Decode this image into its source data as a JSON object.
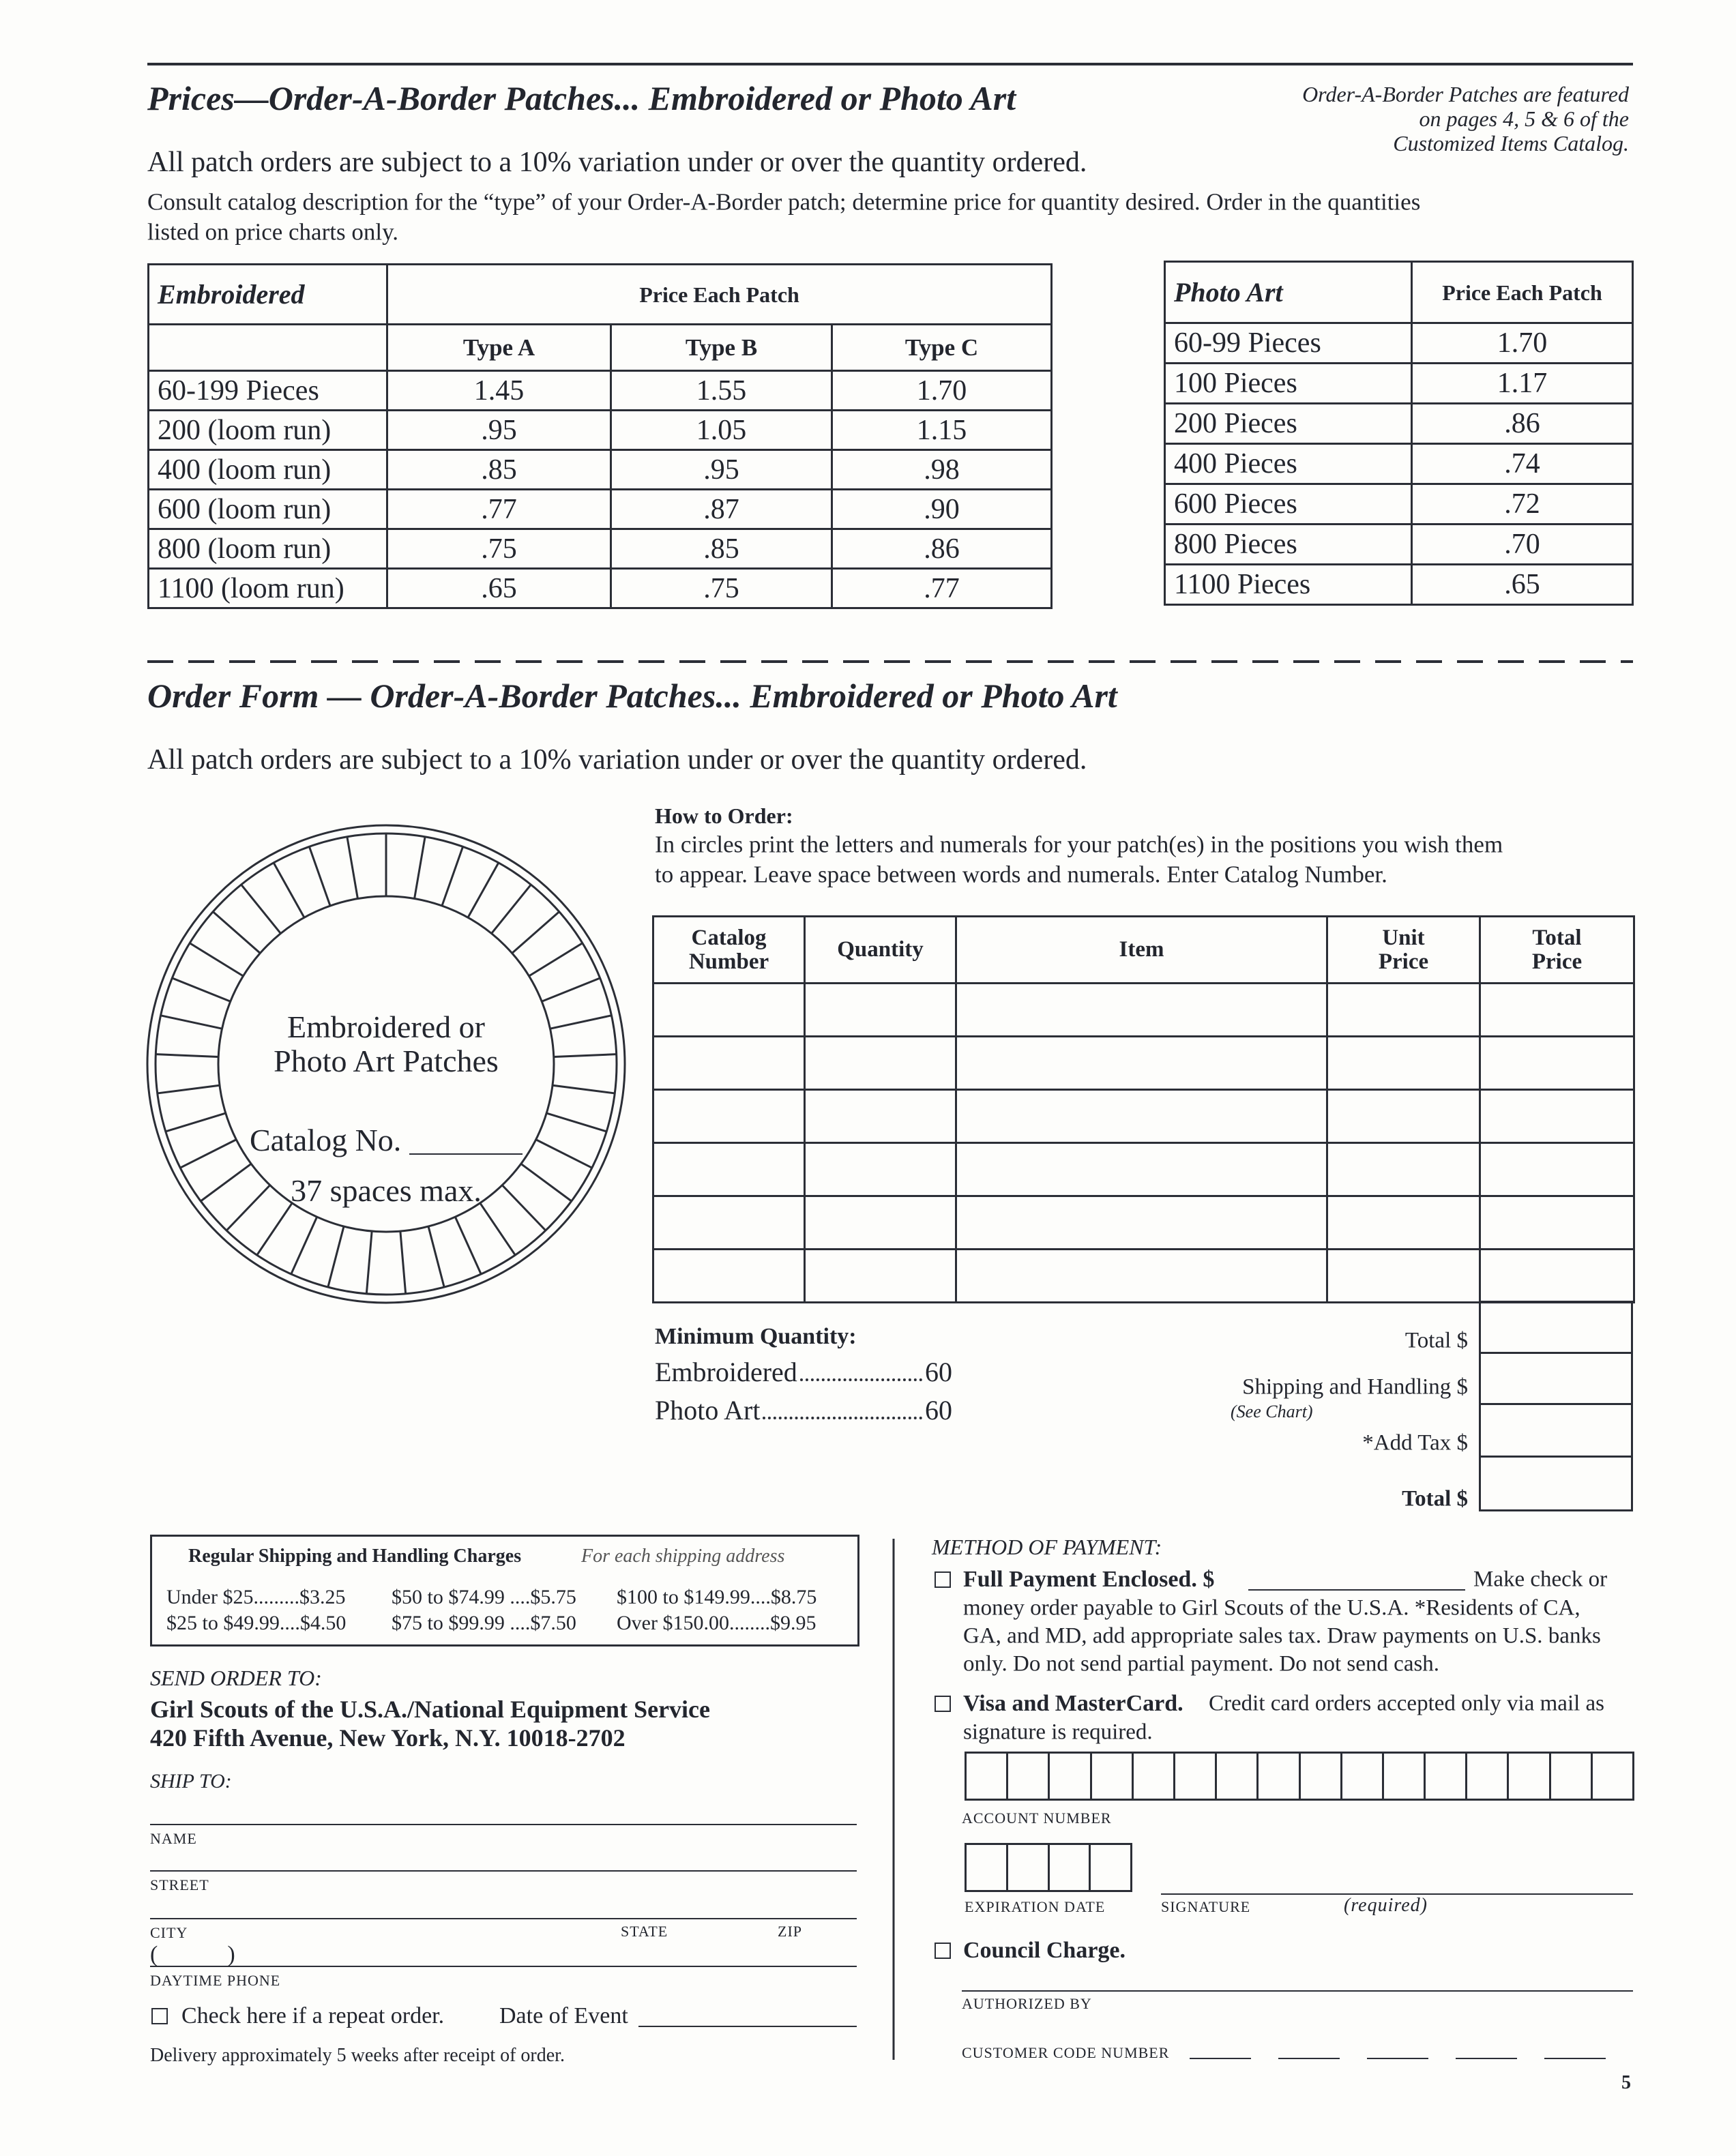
{
  "header": {
    "title": "Prices—Order-A-Border Patches... Embroidered or Photo Art",
    "note": [
      "Order-A-Border Patches are featured",
      "on pages 4, 5 & 6 of the",
      "Customized Items Catalog."
    ],
    "variation": "All patch orders are subject to a 10% variation under or over the quantity ordered.",
    "consult": [
      "Consult catalog description for the “type” of your Order-A-Border patch; determine price for quantity desired. Order in the quantities",
      "listed on price charts only."
    ]
  },
  "embroidered_table": {
    "header": [
      "Embroidered",
      "Price Each Patch"
    ],
    "columns": [
      "Type A",
      "Type B",
      "Type C"
    ],
    "rows": [
      [
        "60-199 Pieces",
        "1.45",
        "1.55",
        "1.70"
      ],
      [
        "200 (loom run)",
        ".95",
        "1.05",
        "1.15"
      ],
      [
        "400 (loom run)",
        ".85",
        ".95",
        ".98"
      ],
      [
        "600 (loom run)",
        ".77",
        ".87",
        ".90"
      ],
      [
        "800 (loom run)",
        ".75",
        ".85",
        ".86"
      ],
      [
        "1100 (loom run)",
        ".65",
        ".75",
        ".77"
      ]
    ]
  },
  "photo_art_table": {
    "header": [
      "Photo Art",
      "Price Each Patch"
    ],
    "rows": [
      [
        "60-99 Pieces",
        "1.70"
      ],
      [
        "100 Pieces",
        "1.17"
      ],
      [
        "200 Pieces",
        ".86"
      ],
      [
        "400 Pieces",
        ".74"
      ],
      [
        "600 Pieces",
        ".72"
      ],
      [
        "800 Pieces",
        ".70"
      ],
      [
        "1100 Pieces",
        ".65"
      ]
    ]
  },
  "order_form": {
    "title": "Order Form — Order-A-Border Patches... Embroidered or Photo Art",
    "variation": "All patch orders are subject to a 10% variation under or over the quantity ordered.",
    "circle": {
      "line1": "Embroidered or",
      "line2": "Photo Art Patches",
      "catalog": "Catalog No.",
      "spaces": "37 spaces max."
    },
    "how_to": {
      "heading": "How to Order:",
      "lines": [
        "In circles print the letters and numerals for your patch(es) in the positions you wish them",
        "to appear. Leave space between words and numerals. Enter Catalog Number."
      ]
    },
    "table": {
      "columns": [
        "Catalog Number",
        "Quantity",
        "Item",
        "Unit Price",
        "Total Price"
      ]
    },
    "minimum": {
      "heading": "Minimum Quantity:",
      "rows": [
        {
          "label": "Embroidered",
          "quantity": "60"
        },
        {
          "label": "Photo Art",
          "quantity": "60"
        }
      ]
    },
    "totals": [
      {
        "label": "Total $"
      },
      {
        "label": "Shipping and Handling $",
        "note": "(See Chart)"
      },
      {
        "label": "*Add Tax $"
      },
      {
        "label": "Total $"
      }
    ]
  },
  "shipping": {
    "title": "Regular Shipping and Handling Charges",
    "note": "For each shipping address",
    "rows": [
      [
        "Under $25.........$3.25",
        "$50 to $74.99 ....$5.75",
        "$100 to $149.99....$8.75"
      ],
      [
        "$25 to $49.99....$4.50",
        "$75 to $99.99 ....$7.50",
        "Over $150.00........$9.95"
      ]
    ]
  },
  "send_to": {
    "heading": "SEND ORDER TO:",
    "address": [
      "Girl Scouts of the U.S.A./National Equipment Service",
      "420 Fifth Avenue, New York, N.Y. 10018-2702"
    ]
  },
  "ship_to": {
    "heading": "SHIP TO:",
    "name": "NAME",
    "street": "STREET",
    "city": "CITY",
    "state": "STATE",
    "zip": "ZIP",
    "phone_format": "(            )",
    "phone": "DAYTIME PHONE",
    "repeat": "Check here if a repeat order.",
    "date": "Date of Event",
    "delivery": "Delivery approximately 5 weeks after receipt of order."
  },
  "payment": {
    "heading": "METHOD OF PAYMENT:",
    "full": {
      "label": "Full Payment Enclosed. $",
      "text": "Make check or",
      "lines": [
        "money order payable to Girl Scouts of the U.S.A. *Residents of CA,",
        "GA, and MD, add appropriate sales tax. Draw payments on U.S. banks",
        "only. Do not send partial payment. Do not send cash."
      ]
    },
    "card": {
      "label": "Visa and MasterCard.",
      "lines": [
        "Credit card orders accepted only via mail as",
        "signature is required."
      ]
    },
    "account": "ACCOUNT NUMBER",
    "expiration": "EXPIRATION DATE",
    "signature": "SIGNATURE",
    "required": "(required)",
    "council": "Council Charge.",
    "authorized": "AUTHORIZED BY",
    "customer_code": "CUSTOMER CODE NUMBER"
  },
  "page_number": "5"
}
